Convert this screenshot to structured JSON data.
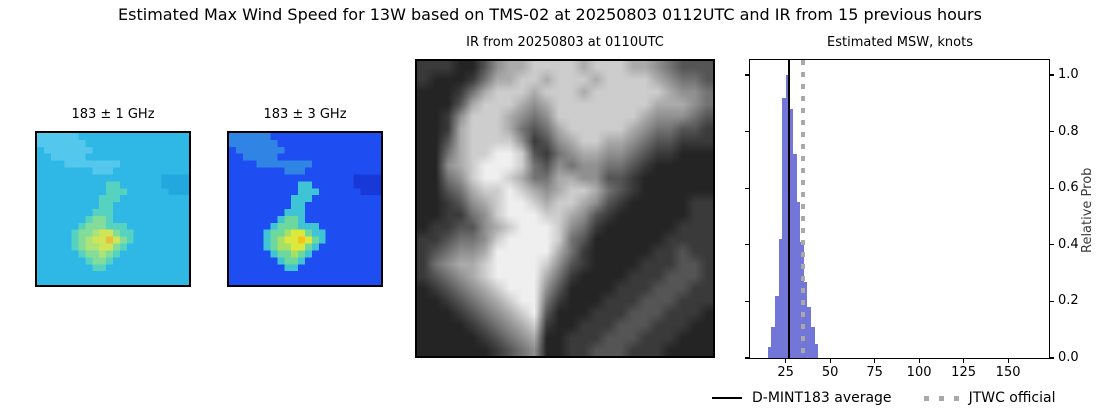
{
  "figure_title": "Estimated Max Wind Speed for 13W based on TMS-02 at 20250803 0112UTC and IR from 15 previous hours",
  "mw1": {
    "title": "183 ± 1 GHz"
  },
  "mw2": {
    "title": "183 ± 3 GHz"
  },
  "ir": {
    "title": "IR from 20250803 at 0110UTC"
  },
  "chart_data": {
    "type": "bar",
    "subtype": "histogram",
    "title": "Estimated MSW, knots",
    "xlabel": "",
    "ylabel": "Relative Prob",
    "xlim": [
      5,
      173
    ],
    "ylim": [
      0,
      1.053
    ],
    "x_ticks": [
      25,
      50,
      75,
      100,
      125,
      150
    ],
    "y_ticks": [
      "0.0",
      "0.2",
      "0.4",
      "0.6",
      "0.8",
      "1.0"
    ],
    "bin_start_knots": 15,
    "bin_width_knots": 2,
    "bin_probs": [
      0.04,
      0.11,
      0.22,
      0.42,
      0.92,
      1.0,
      0.88,
      0.72,
      0.55,
      0.41,
      0.27,
      0.18,
      0.11,
      0.05
    ],
    "bar_color": "#7276d8",
    "dmint183_average_knots": 27,
    "jtwc_official_knots": 35,
    "avg_line_color": "#000000",
    "jtwc_line_color": "#a9a9a9",
    "grid": "off",
    "legend_position": "below-axes"
  },
  "legend": {
    "items": [
      {
        "label": "D-MINT183 average",
        "style": "solid-line",
        "color": "#000000"
      },
      {
        "label": "JTWC official",
        "style": "dotted-line",
        "color": "#a9a9a9"
      }
    ]
  },
  "images": {
    "mw_grid": [
      "bbbbbbaaaaaaaaaaaaaaaa",
      "bbbbbbbaaaaaaaaaaaaaaa",
      "abbbbbbbaaaaaaaaaaaaaa",
      "aabbbbbaaaaaaaaaaaaaaa",
      "aaaabbbbbbbbaaaaaaaaaa",
      "aaaaaaaabbbaaaaaaaaaaa",
      "aaaaaaaaaaaaaaaaaacccc",
      "aaaaaaaaaaddaaaaaacccc",
      "aaaaaaaaaadddaaaaaaccc",
      "aaaaaaaaadddaaaaaaaaaa",
      "aaaaaaaaaddaaaaaaaaaaa",
      "aaaaaaaadddaaaaaaaaaaa",
      "aaaaaaadeedaaaaaaaaaaa",
      "aaaaaadeeedddaaaaaaaaa",
      "aaaaadeefggeddaaaaaaaa",
      "aaaaadefggigedaaaaaaaa",
      "aaaaadeffggedaaaaaaaaa",
      "aaaaaadeefedaaaaaaaaaa",
      "aaaaaaadeedaaaaaaaaaaa",
      "aaaaaaaaddaaaaaaaaaaaa",
      "aaaaaaaaaaaaaaaaaaaaaa",
      "aaaaaaaaaaaaaaaaaaaaaa"
    ],
    "mw1_palette": {
      "a": "#2fb7e6",
      "b": "#53c8ec",
      "c": "#22a7de",
      "d": "#55d2c0",
      "e": "#83dc9a",
      "f": "#abe27b",
      "g": "#cfe659",
      "h": "#e6da41",
      "i": "#e8bf3a"
    },
    "mw2_palette": {
      "a": "#1e4ef2",
      "b": "#2f84e4",
      "c": "#1838d8",
      "d": "#3ec4d4",
      "e": "#6cd89e",
      "f": "#a5e166",
      "g": "#dce83c",
      "h": "#f6e01e",
      "i": "#f2c61c"
    },
    "ir_grid": [
      "333224677888878887765444",
      "322235778878887888876554",
      "222357888788878888887665",
      "222478887678888888877765",
      "223688876568888888766654",
      "223788875457888887655443",
      "224788886346788776544333",
      "225788998435677665433222",
      "226789998546566554322222",
      "225689987557766443222222",
      "224578898767887543222222",
      "223467899878876432222233",
      "223356899988764322222233",
      "233446789998653222222333",
      "334556899998542222223333",
      "345667999997532222233433",
      "356778999986432222333443",
      "345678999975322223334443",
      "234567899964222233344433",
      "223456789953222333444333",
      "222345678942223334443332",
      "222234567832233344433322",
      "222223456722333444333222",
      "222222345622334443332222"
    ],
    "ir_palette": {
      "0": "#0e0e0e",
      "1": "#1a1a1a",
      "2": "#242424",
      "3": "#3a3a3a",
      "4": "#555555",
      "5": "#737373",
      "6": "#909090",
      "7": "#ababab",
      "8": "#cdcdcd",
      "9": "#efefef"
    }
  }
}
